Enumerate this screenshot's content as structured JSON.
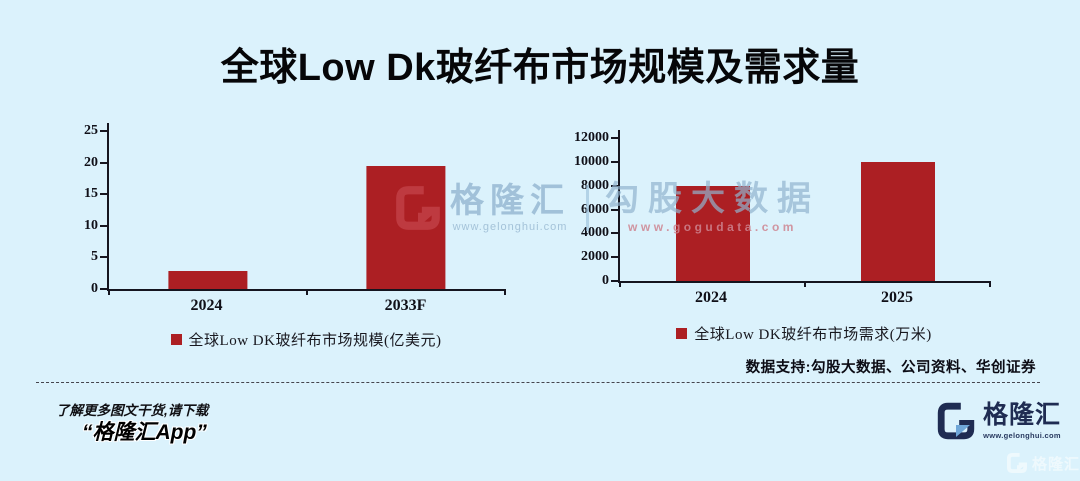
{
  "title": "全球Low Dk玻纤布市场规模及需求量",
  "chart_data": [
    {
      "type": "bar",
      "title": "",
      "categories": [
        "2024",
        "2033F"
      ],
      "values": [
        2.8,
        19.5
      ],
      "legend": "全球Low DK玻纤布市场规模(亿美元)",
      "xlabel": "",
      "ylabel": "",
      "ylim": [
        0,
        25
      ],
      "yticks": [
        0,
        5,
        10,
        15,
        20,
        25
      ],
      "grid": false,
      "legend_position": "bottom",
      "bar_color": "#ac1f23"
    },
    {
      "type": "bar",
      "title": "",
      "categories": [
        "2024",
        "2025"
      ],
      "values": [
        8000,
        10000
      ],
      "legend": "全球Low DK玻纤布市场需求(万米)",
      "xlabel": "",
      "ylabel": "",
      "ylim": [
        0,
        12000
      ],
      "yticks": [
        0,
        2000,
        4000,
        6000,
        8000,
        10000,
        12000
      ],
      "grid": false,
      "legend_position": "bottom",
      "bar_color": "#ac1f23"
    }
  ],
  "watermark_center": {
    "brand": "格隆汇",
    "brand_url": "www.gelonghui.com",
    "partner": "勾股大数据",
    "partner_url": "www.gogudata.com"
  },
  "footer": {
    "data_support": "数据支持:勾股大数据、公司资料、华创证券",
    "promo_line1": "了解更多图文干货,请下载",
    "promo_line2": "“格隆汇App”",
    "logo_text": "格隆汇",
    "logo_url": "www.gelonghui.com",
    "corner_watermark": "格隆汇"
  },
  "colors": {
    "background": "#dbf2fc",
    "bar": "#ac1f23",
    "axis": "#15151f",
    "logo_navy": "#1f2c52",
    "logo_light_blue": "#6fa7d8",
    "watermark_red": "#be3a40",
    "watermark_blue": "#8fb4d2",
    "watermark_pink": "#ce8590"
  }
}
